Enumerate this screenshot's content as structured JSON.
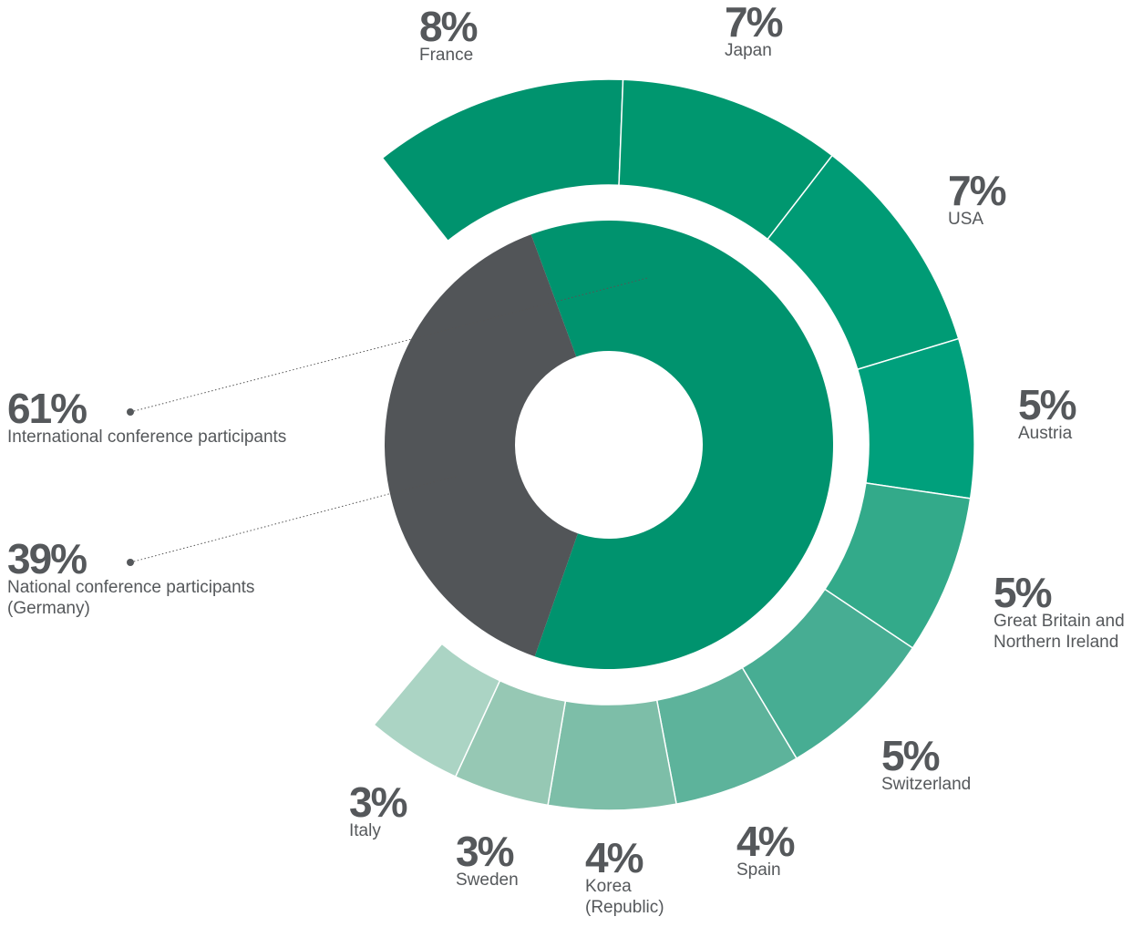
{
  "chart_data": {
    "type": "nested-donut",
    "inner": {
      "categories": [
        "International conference participants",
        "National conference participants (Germany)"
      ],
      "values": [
        61,
        39
      ],
      "value_labels": [
        "61%",
        "39%"
      ],
      "colors": [
        "#00936e",
        "#525558"
      ]
    },
    "outer": {
      "categories": [
        "France",
        "Japan",
        "USA",
        "Austria",
        "Great Britain and Northern Ireland",
        "Switzerland",
        "Spain",
        "Korea (Republic)",
        "Sweden",
        "Italy"
      ],
      "values": [
        8,
        7,
        7,
        5,
        5,
        5,
        4,
        4,
        3,
        3
      ],
      "value_labels": [
        "8%",
        "7%",
        "7%",
        "5%",
        "5%",
        "5%",
        "4%",
        "4%",
        "3%",
        "3%"
      ],
      "colors": [
        "#00936e",
        "#00976f",
        "#009b75",
        "#00a07c",
        "#33aa8a",
        "#47ad93",
        "#5db39b",
        "#7dbea8",
        "#96c8b4",
        "#abd4c4"
      ]
    }
  }
}
